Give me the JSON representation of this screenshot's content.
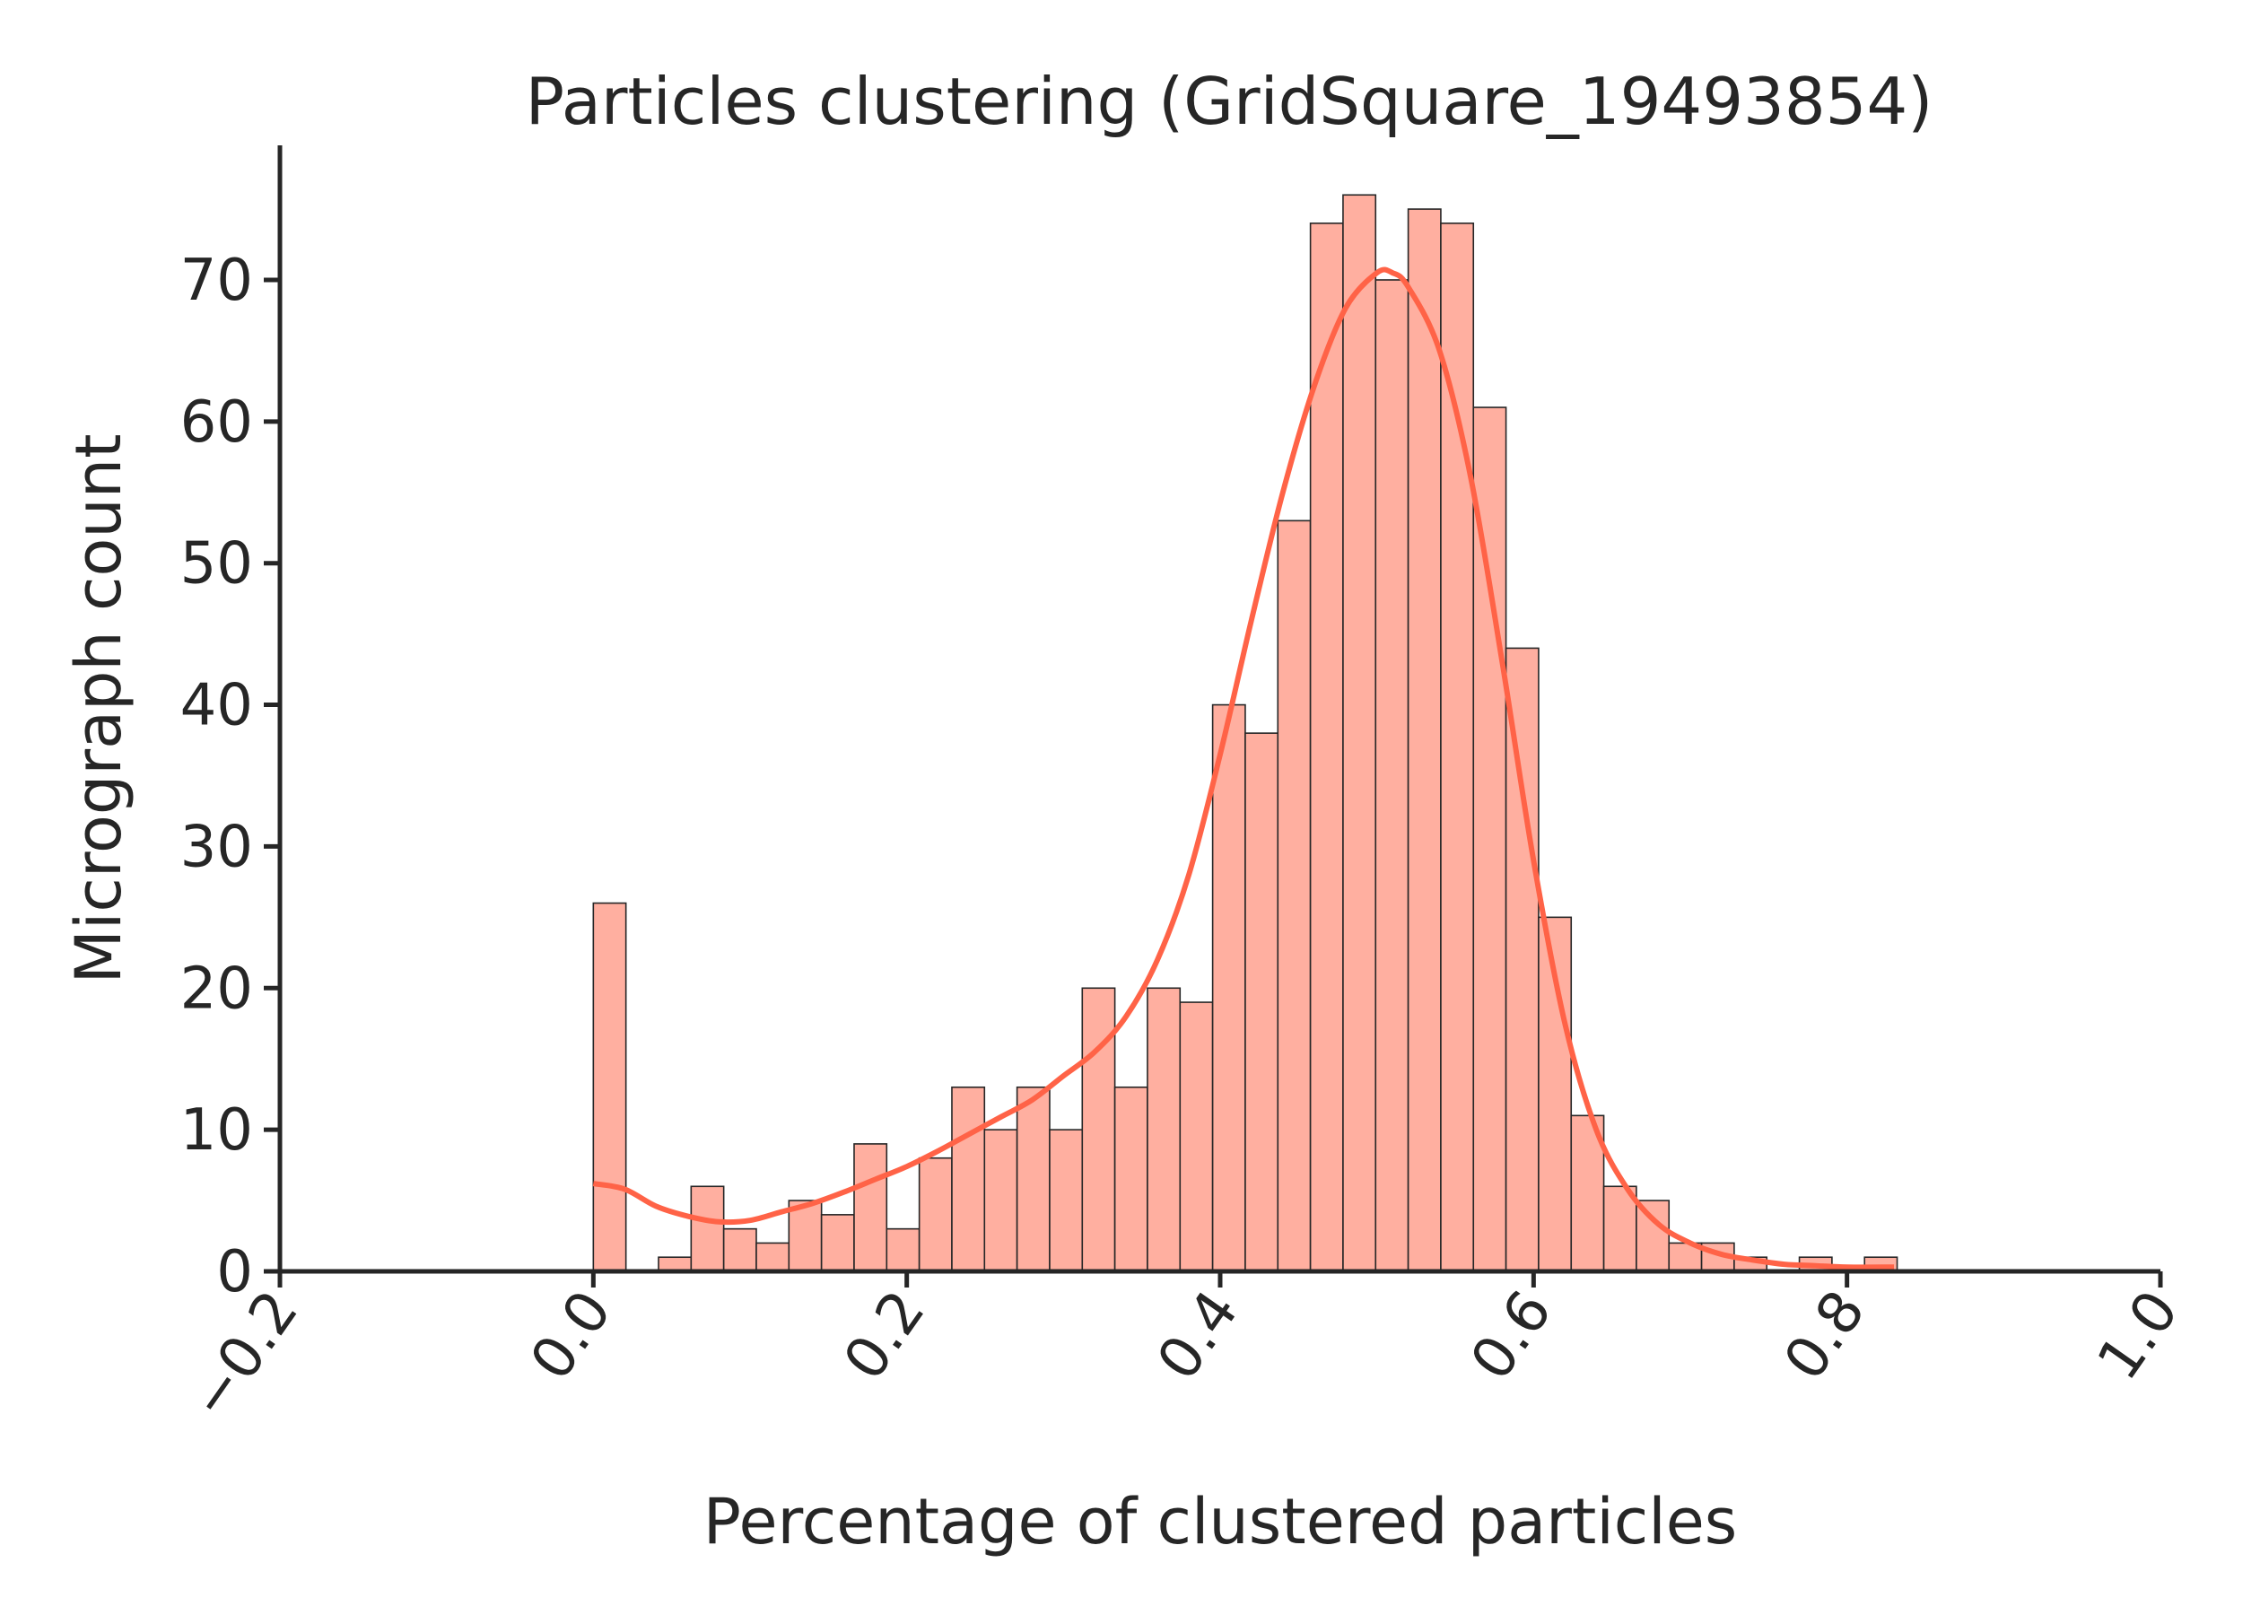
{
  "chart_data": {
    "type": "bar",
    "title": "Particles clustering (GridSquare_19493854)",
    "xlabel": "Percentage of clustered particles",
    "ylabel": "Micrograph count",
    "xlim": [
      -0.2,
      1.0
    ],
    "ylim": [
      0,
      80
    ],
    "xticks": [
      -0.2,
      0.0,
      0.2,
      0.4,
      0.6,
      0.8,
      1.0
    ],
    "xtick_labels": [
      "−0.2",
      "0.0",
      "0.2",
      "0.4",
      "0.6",
      "0.8",
      "1.0"
    ],
    "yticks": [
      0,
      10,
      20,
      30,
      40,
      50,
      60,
      70
    ],
    "ytick_labels": [
      "0",
      "10",
      "20",
      "30",
      "40",
      "50",
      "60",
      "70"
    ],
    "xtick_rotation": -55,
    "bin_start": 0.0,
    "bin_width": 0.0208,
    "counts": [
      26,
      0,
      1,
      6,
      3,
      2,
      5,
      4,
      9,
      3,
      8,
      13,
      10,
      13,
      10,
      20,
      13,
      20,
      19,
      40,
      38,
      53,
      74,
      76,
      70,
      75,
      74,
      61,
      44,
      25,
      11,
      6,
      5,
      2,
      2,
      1,
      0,
      1,
      0,
      1
    ],
    "kde": {
      "x": [
        0.0,
        0.02,
        0.04,
        0.06,
        0.08,
        0.1,
        0.12,
        0.14,
        0.16,
        0.18,
        0.2,
        0.22,
        0.24,
        0.26,
        0.28,
        0.3,
        0.32,
        0.34,
        0.36,
        0.38,
        0.4,
        0.42,
        0.44,
        0.46,
        0.48,
        0.5,
        0.51,
        0.52,
        0.54,
        0.56,
        0.58,
        0.6,
        0.62,
        0.64,
        0.66,
        0.68,
        0.7,
        0.72,
        0.74,
        0.76,
        0.78,
        0.8,
        0.83
      ],
      "y": [
        6.2,
        5.8,
        4.6,
        3.9,
        3.5,
        3.6,
        4.2,
        4.8,
        5.6,
        6.5,
        7.4,
        8.5,
        9.7,
        10.9,
        12.1,
        13.8,
        15.5,
        18.0,
        22.0,
        28.0,
        36.5,
        46.0,
        55.0,
        62.5,
        68.0,
        70.5,
        70.5,
        69.5,
        65.0,
        56.0,
        43.0,
        29.0,
        17.5,
        10.0,
        5.8,
        3.3,
        2.0,
        1.2,
        0.8,
        0.5,
        0.4,
        0.3,
        0.3
      ]
    },
    "bar_color": "#FFAFA0",
    "bar_edge_color": "#262626",
    "kde_color": "#FF6347",
    "grid": false,
    "legend": false
  }
}
